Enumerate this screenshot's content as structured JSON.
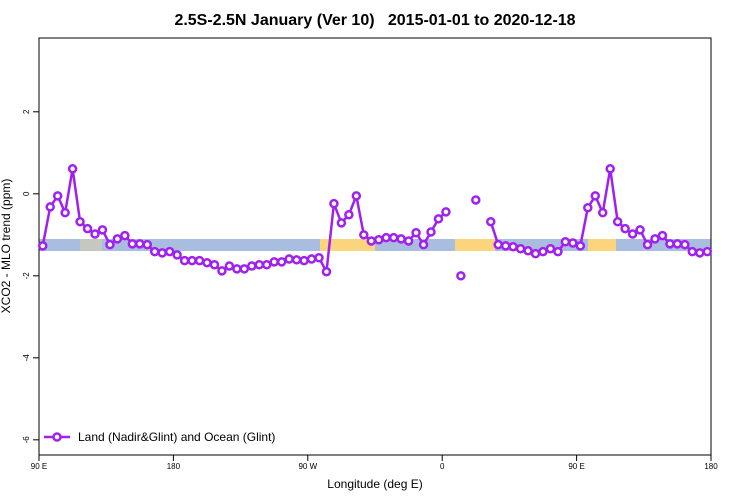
{
  "chart_data": {
    "type": "line",
    "title": "2.5S-2.5N January (Ver 10)   2015-01-01 to 2020-12-18",
    "x_label": "Longitude (deg E)",
    "y_label": "XCO2 - MLO trend (ppm)",
    "xlim": [
      90,
      540
    ],
    "ylim": [
      -6.37,
      3.8
    ],
    "xticks": [
      {
        "value": 90,
        "label": "90 E"
      },
      180,
      {
        "value": 270,
        "label": "90 W"
      },
      {
        "value": 360,
        "label": "0"
      },
      {
        "value": 450,
        "label": "90 E"
      },
      {
        "value": 540,
        "label": "180"
      }
    ],
    "yticks": [
      2,
      0,
      -2,
      -4,
      -6
    ],
    "legend": "bottom-left",
    "x": [
      92.5,
      97.5,
      102.5,
      107.5,
      112.5,
      117.5,
      122.5,
      127.5,
      132.5,
      137.5,
      142.5,
      147.5,
      152.5,
      157.5,
      162.5,
      167.5,
      172.5,
      177.5,
      182.5,
      187.5,
      192.5,
      197.5,
      202.5,
      207.5,
      212.5,
      217.5,
      222.5,
      227.5,
      232.5,
      237.5,
      242.5,
      247.5,
      252.5,
      257.5,
      262.5,
      267.5,
      272.5,
      277.5,
      282.5,
      287.5,
      292.5,
      297.5,
      302.5,
      307.5,
      312.5,
      317.5,
      322.5,
      327.5,
      332.5,
      337.5,
      342.5,
      347.5,
      352.5,
      357.5,
      362.5,
      367.5,
      372.5,
      377.5,
      382.5,
      387.5,
      392.5,
      397.5,
      402.5,
      407.5,
      412.5,
      417.5,
      422.5,
      427.5,
      432.5,
      437.5,
      442.5,
      447.5,
      452.5,
      457.5,
      462.5,
      467.5,
      472.5,
      477.5,
      482.5,
      487.5,
      492.5,
      497.5,
      502.5,
      507.5,
      512.5,
      517.5,
      522.5,
      527.5,
      532.5,
      537.5
    ],
    "series": [
      {
        "name": "Land (Nadir&Glint) and Ocean (Glint)",
        "color": "#a020f0",
        "values": [
          -1.27,
          -0.32,
          -0.05,
          -0.46,
          0.61,
          -0.68,
          -0.85,
          -0.98,
          -0.88,
          -1.24,
          -1.1,
          -1.02,
          -1.22,
          -1.22,
          -1.24,
          -1.41,
          -1.44,
          -1.41,
          -1.49,
          -1.63,
          -1.63,
          -1.63,
          -1.68,
          -1.73,
          -1.88,
          -1.76,
          -1.83,
          -1.83,
          -1.76,
          -1.73,
          -1.73,
          -1.66,
          -1.66,
          -1.59,
          -1.61,
          -1.63,
          -1.59,
          -1.56,
          -1.9,
          -0.24,
          -0.71,
          -0.51,
          -0.05,
          -1.0,
          -1.15,
          -1.12,
          -1.07,
          -1.07,
          -1.1,
          -1.15,
          -0.95,
          -1.24,
          -0.93,
          -0.61,
          -0.44,
          null,
          -2.0,
          null,
          -0.15,
          null,
          -0.68,
          -1.24,
          -1.27,
          -1.29,
          -1.34,
          -1.39,
          -1.46,
          -1.41,
          -1.34,
          -1.41,
          -1.17,
          -1.2,
          -1.27,
          -0.34,
          -0.05,
          -0.46,
          0.61,
          -0.68,
          -0.85,
          -0.98,
          -0.88,
          -1.24,
          -1.1,
          -1.02,
          -1.22,
          -1.22,
          -1.24,
          -1.41,
          -1.44,
          -1.41
        ]
      }
    ]
  }
}
